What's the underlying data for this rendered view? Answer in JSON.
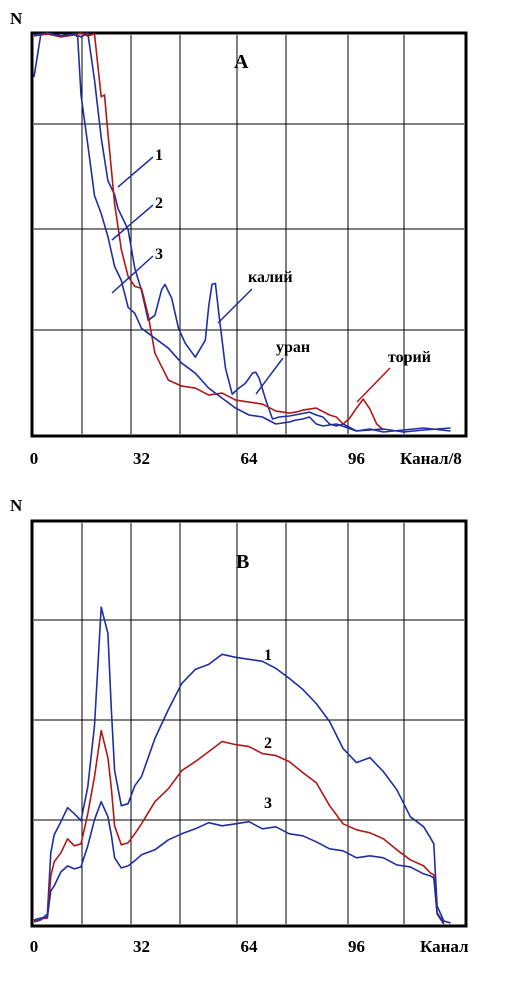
{
  "chart_data": [
    {
      "type": "line",
      "panel": "A",
      "ylabel": "N",
      "xlabel": "Канал/8",
      "xlim": [
        0,
        128
      ],
      "ylim": [
        0,
        100
      ],
      "grid": true,
      "x_ticks": [
        "0",
        "32",
        "64",
        "96"
      ],
      "x_tick_values": [
        0,
        32,
        64,
        96
      ],
      "series": [
        {
          "name": "1",
          "color": "#1f2fa0",
          "x": [
            0,
            2,
            4,
            8,
            12,
            14,
            15,
            16,
            18,
            20,
            22,
            24,
            25,
            26,
            28,
            30,
            32,
            34,
            36,
            38,
            39,
            41,
            43,
            45,
            48,
            51,
            52,
            53,
            54,
            55,
            57,
            59,
            61,
            63,
            65,
            66,
            67,
            69,
            71,
            73,
            76,
            79,
            82,
            84,
            86,
            88,
            90,
            92,
            96,
            100,
            104,
            110,
            116,
            124
          ],
          "y": [
            90,
            100,
            100,
            100,
            100,
            100,
            100,
            100,
            89,
            74,
            64,
            60,
            56,
            55,
            51,
            42,
            36,
            28,
            30,
            36,
            38,
            34,
            26,
            23,
            19,
            24,
            32,
            37,
            38,
            30,
            17,
            10,
            11,
            13,
            15,
            16,
            14,
            8,
            4,
            4,
            5,
            5,
            5,
            5,
            4,
            3,
            2,
            2,
            1,
            1,
            1,
            1,
            1,
            1
          ]
        },
        {
          "name": "2",
          "color": "#b01818",
          "x": [
            0,
            4,
            8,
            12,
            14,
            16,
            18,
            20,
            21,
            22,
            24,
            26,
            28,
            30,
            32,
            34,
            36,
            40,
            44,
            48,
            52,
            56,
            60,
            64,
            68,
            72,
            76,
            78,
            80,
            84,
            88,
            90,
            92,
            94,
            96,
            98,
            100,
            102,
            104
          ],
          "y": [
            100,
            100,
            100,
            100,
            100,
            100,
            100,
            85,
            85,
            75,
            58,
            46,
            40,
            37,
            36,
            30,
            20,
            14,
            12,
            11,
            10,
            10,
            9,
            8,
            7,
            6,
            5,
            6,
            6,
            6,
            5,
            4,
            3,
            4,
            6,
            9,
            6,
            3,
            1
          ]
        },
        {
          "name": "3",
          "color": "#1f2fa0",
          "x": [
            0,
            4,
            8,
            12,
            13,
            14,
            16,
            18,
            20,
            22,
            24,
            26,
            28,
            30,
            32,
            36,
            40,
            44,
            48,
            52,
            56,
            60,
            64,
            68,
            72,
            76,
            78,
            80,
            82,
            84,
            86,
            90,
            96,
            104,
            110,
            116,
            124
          ],
          "y": [
            100,
            100,
            100,
            100,
            100,
            85,
            72,
            60,
            55,
            50,
            42,
            38,
            32,
            30,
            27,
            24,
            21,
            18,
            15,
            12,
            9,
            6,
            5,
            4,
            3,
            3,
            3,
            4,
            4,
            3,
            2,
            2,
            1,
            1,
            1,
            1,
            1
          ]
        }
      ],
      "annotations": [
        "1",
        "2",
        "3",
        "калий",
        "уран",
        "торий"
      ]
    },
    {
      "type": "line",
      "panel": "B",
      "ylabel": "N",
      "xlabel": "Канал",
      "xlim": [
        0,
        128
      ],
      "ylim": [
        0,
        100
      ],
      "grid": true,
      "x_ticks": [
        "0",
        "32",
        "64",
        "96"
      ],
      "x_tick_values": [
        0,
        32,
        64,
        96
      ],
      "series": [
        {
          "name": "1",
          "color": "#1f2fa0",
          "x": [
            0,
            2,
            4,
            5,
            6,
            8,
            10,
            12,
            14,
            16,
            18,
            20,
            22,
            23,
            24,
            26,
            28,
            30,
            32,
            36,
            40,
            44,
            48,
            52,
            56,
            60,
            64,
            68,
            72,
            76,
            80,
            84,
            88,
            92,
            96,
            100,
            104,
            108,
            112,
            116,
            118,
            119,
            120,
            122,
            124
          ],
          "y": [
            1,
            1,
            2,
            18,
            22,
            26,
            29,
            27,
            26,
            34,
            50,
            79,
            72,
            54,
            38,
            30,
            30,
            34,
            37,
            46,
            54,
            60,
            63,
            65,
            67,
            67,
            66,
            65,
            64,
            61,
            59,
            55,
            50,
            44,
            40,
            42,
            38,
            33,
            27,
            24,
            22,
            20,
            4,
            1,
            0
          ]
        },
        {
          "name": "2",
          "color": "#b01818",
          "x": [
            0,
            2,
            4,
            5,
            6,
            8,
            10,
            12,
            14,
            16,
            18,
            20,
            22,
            23,
            24,
            26,
            28,
            30,
            32,
            36,
            40,
            44,
            48,
            52,
            56,
            60,
            64,
            68,
            72,
            76,
            80,
            84,
            88,
            92,
            96,
            100,
            104,
            108,
            112,
            116,
            118,
            119,
            120,
            122
          ],
          "y": [
            1,
            1,
            2,
            12,
            15,
            18,
            21,
            20,
            20,
            27,
            37,
            48,
            42,
            34,
            24,
            20,
            20,
            23,
            25,
            30,
            34,
            38,
            41,
            43,
            45,
            45,
            44,
            43,
            42,
            40,
            38,
            35,
            30,
            25,
            23,
            23,
            21,
            19,
            16,
            14,
            13,
            12,
            3,
            0
          ]
        },
        {
          "name": "3",
          "color": "#1f2fa0",
          "x": [
            0,
            2,
            4,
            5,
            6,
            8,
            10,
            12,
            14,
            16,
            18,
            20,
            22,
            23,
            24,
            26,
            28,
            30,
            32,
            36,
            40,
            44,
            48,
            52,
            56,
            60,
            64,
            68,
            72,
            76,
            80,
            84,
            88,
            92,
            96,
            100,
            104,
            108,
            112,
            116,
            118,
            119,
            120,
            122
          ],
          "y": [
            1,
            1,
            2,
            8,
            10,
            13,
            14,
            14,
            14,
            20,
            26,
            30,
            27,
            22,
            17,
            14,
            14,
            16,
            17,
            19,
            21,
            22,
            24,
            25,
            25,
            25,
            25,
            24,
            24,
            23,
            22,
            20,
            19,
            18,
            17,
            17,
            16,
            15,
            14,
            13,
            12,
            11,
            3,
            0
          ]
        }
      ],
      "annotations": [
        "1",
        "2",
        "3"
      ]
    }
  ]
}
